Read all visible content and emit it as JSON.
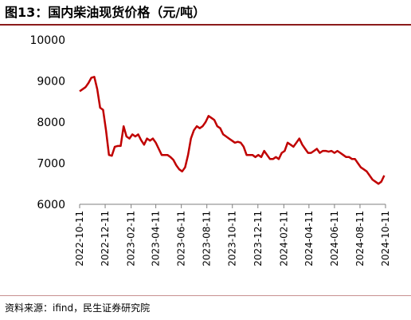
{
  "figure": {
    "title": "图13：国内柴油现货价格（元/吨）",
    "source": "资料来源：ifind，民生证券研究院"
  },
  "colors": {
    "series": "#c00000",
    "accent_rule": "#8b1a1a",
    "axis": "#7f7f7f"
  },
  "chart_data": {
    "type": "line",
    "title": "",
    "xlabel": "",
    "ylabel": "",
    "ylim": [
      6000,
      10000
    ],
    "xlim": [
      "2022-10-11",
      "2024-10-11"
    ],
    "yticks": [
      6000,
      7000,
      8000,
      9000,
      10000
    ],
    "ytick_labels": [
      "6000",
      "7000",
      "8000",
      "9000",
      "10000"
    ],
    "xtick_labels": [
      "2022-10-11",
      "2022-12-11",
      "2023-02-11",
      "2023-04-11",
      "2023-06-11",
      "2023-08-11",
      "2023-10-11",
      "2023-12-11",
      "2024-02-11",
      "2024-04-11",
      "2024-06-11",
      "2024-08-11",
      "2024-10-11"
    ],
    "grid": false,
    "legend": "none",
    "series": [
      {
        "x": [
          "2022-10-11",
          "2022-10-18",
          "2022-10-25",
          "2022-11-01",
          "2022-11-08",
          "2022-11-15",
          "2022-11-22",
          "2022-11-29",
          "2022-12-06",
          "2022-12-13",
          "2022-12-20",
          "2022-12-27",
          "2023-01-03",
          "2023-01-10",
          "2023-01-17",
          "2023-01-24",
          "2023-01-31",
          "2023-02-07",
          "2023-02-14",
          "2023-02-21",
          "2023-02-28",
          "2023-03-07",
          "2023-03-14",
          "2023-03-21",
          "2023-03-28",
          "2023-04-04",
          "2023-04-11",
          "2023-04-18",
          "2023-04-25",
          "2023-05-02",
          "2023-05-09",
          "2023-05-16",
          "2023-05-23",
          "2023-05-30",
          "2023-06-06",
          "2023-06-13",
          "2023-06-20",
          "2023-06-27",
          "2023-07-04",
          "2023-07-11",
          "2023-07-18",
          "2023-07-25",
          "2023-08-01",
          "2023-08-08",
          "2023-08-15",
          "2023-08-22",
          "2023-08-29",
          "2023-09-05",
          "2023-09-12",
          "2023-09-19",
          "2023-09-26",
          "2023-10-03",
          "2023-10-10",
          "2023-10-17",
          "2023-10-24",
          "2023-10-31",
          "2023-11-07",
          "2023-11-14",
          "2023-11-21",
          "2023-11-28",
          "2023-12-05",
          "2023-12-12",
          "2023-12-19",
          "2023-12-26",
          "2024-01-02",
          "2024-01-09",
          "2024-01-16",
          "2024-01-23",
          "2024-01-30",
          "2024-02-06",
          "2024-02-13",
          "2024-02-20",
          "2024-02-27",
          "2024-03-05",
          "2024-03-12",
          "2024-03-19",
          "2024-03-26",
          "2024-04-02",
          "2024-04-09",
          "2024-04-16",
          "2024-04-23",
          "2024-04-30",
          "2024-05-07",
          "2024-05-14",
          "2024-05-21",
          "2024-05-28",
          "2024-06-04",
          "2024-06-11",
          "2024-06-18",
          "2024-06-25",
          "2024-07-02",
          "2024-07-09",
          "2024-07-16",
          "2024-07-23",
          "2024-07-30",
          "2024-08-06",
          "2024-08-13",
          "2024-08-20",
          "2024-08-27",
          "2024-09-03",
          "2024-09-10",
          "2024-09-17",
          "2024-09-24",
          "2024-10-01",
          "2024-10-08"
        ],
        "y": [
          8750,
          8800,
          8850,
          8950,
          9080,
          9100,
          8800,
          8350,
          8300,
          7800,
          7200,
          7180,
          7400,
          7420,
          7420,
          7900,
          7650,
          7600,
          7700,
          7650,
          7700,
          7560,
          7450,
          7600,
          7550,
          7600,
          7500,
          7350,
          7200,
          7200,
          7200,
          7150,
          7080,
          6950,
          6850,
          6800,
          6900,
          7200,
          7600,
          7800,
          7900,
          7850,
          7900,
          8000,
          8150,
          8100,
          8050,
          7900,
          7850,
          7700,
          7650,
          7600,
          7550,
          7500,
          7520,
          7500,
          7400,
          7200,
          7200,
          7200,
          7150,
          7200,
          7150,
          7300,
          7200,
          7100,
          7100,
          7150,
          7100,
          7250,
          7300,
          7500,
          7450,
          7400,
          7500,
          7600,
          7450,
          7350,
          7250,
          7250,
          7300,
          7350,
          7250,
          7300,
          7300,
          7280,
          7300,
          7250,
          7300,
          7250,
          7200,
          7150,
          7150,
          7100,
          7100,
          7000,
          6900,
          6850,
          6800,
          6700,
          6600,
          6550,
          6500,
          6550,
          6700
        ]
      }
    ]
  }
}
